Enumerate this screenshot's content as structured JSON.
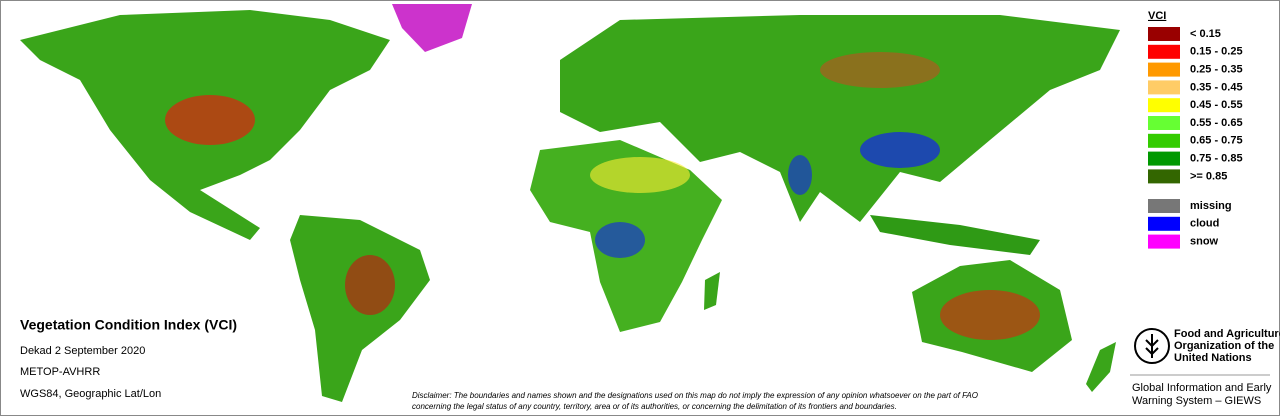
{
  "legend": {
    "title": "VCI",
    "items": [
      {
        "label": "< 0.15",
        "color": "#990000"
      },
      {
        "label": "0.15 - 0.25",
        "color": "#ff0000"
      },
      {
        "label": "0.25 - 0.35",
        "color": "#ff9900"
      },
      {
        "label": "0.35 - 0.45",
        "color": "#ffcc66"
      },
      {
        "label": "0.45 - 0.55",
        "color": "#ffff00"
      },
      {
        "label": "0.55 - 0.65",
        "color": "#66ff33"
      },
      {
        "label": "0.65 - 0.75",
        "color": "#33cc00"
      },
      {
        "label": "0.75 - 0.85",
        "color": "#009900"
      },
      {
        "label": ">= 0.85",
        "color": "#336600"
      }
    ],
    "extra": [
      {
        "label": "missing",
        "color": "#777777"
      },
      {
        "label": "cloud",
        "color": "#0000ff"
      },
      {
        "label": "snow",
        "color": "#ff00ff"
      }
    ]
  },
  "info": {
    "title": "Vegetation Condition Index (VCI)",
    "lines": [
      "Dekad 2 September 2020",
      "METOP-AVHRR",
      "WGS84, Geographic Lat/Lon"
    ]
  },
  "disclaimer": [
    "Disclaimer: The boundaries and names shown and the designations used on this map do not imply the expression of any opinion whatsoever on the part of FAO",
    "concerning the legal status of any country, territory, area or of its authorities, or concerning the delimitation of its frontiers and boundaries."
  ],
  "organization": {
    "name": [
      "Food and Agriculture",
      "Organization of the",
      "United Nations"
    ],
    "unit": [
      "Global Information and Early",
      "Warning System – GIEWS"
    ]
  }
}
